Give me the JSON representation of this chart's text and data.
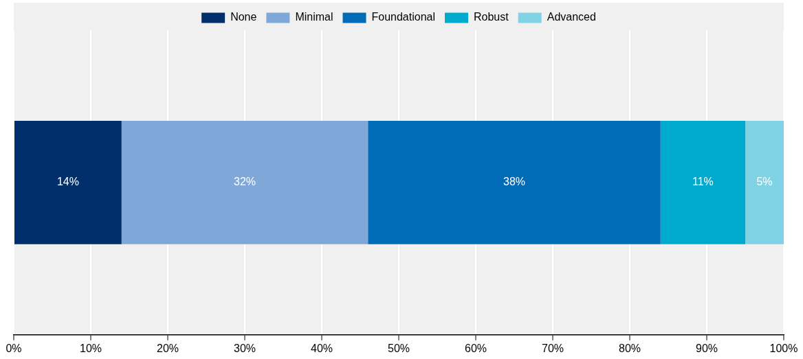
{
  "chart_data": {
    "type": "bar",
    "orientation": "horizontal",
    "stacked": true,
    "categories": [
      null
    ],
    "series": [
      {
        "name": "None",
        "color": "#002f6c",
        "values": [
          14
        ],
        "value_labels": [
          "14%"
        ]
      },
      {
        "name": "Minimal",
        "color": "#7fa8d9",
        "values": [
          32
        ],
        "value_labels": [
          "32%"
        ]
      },
      {
        "name": "Foundational",
        "color": "#006bb6",
        "values": [
          38
        ],
        "value_labels": [
          "38%"
        ]
      },
      {
        "name": "Robust",
        "color": "#00aacc",
        "values": [
          11
        ],
        "value_labels": [
          "11%"
        ]
      },
      {
        "name": "Advanced",
        "color": "#7fd3e4",
        "values": [
          5
        ],
        "value_labels": [
          "5%"
        ]
      }
    ],
    "xlim": [
      0,
      100
    ],
    "xticks": [
      {
        "value": 0,
        "label": "0%"
      },
      {
        "value": 10,
        "label": "10%"
      },
      {
        "value": 20,
        "label": "20%"
      },
      {
        "value": 30,
        "label": "30%"
      },
      {
        "value": 40,
        "label": "40%"
      },
      {
        "value": 50,
        "label": "50%"
      },
      {
        "value": 60,
        "label": "60%"
      },
      {
        "value": 70,
        "label": "70%"
      },
      {
        "value": 80,
        "label": "80%"
      },
      {
        "value": 90,
        "label": "90%"
      },
      {
        "value": 100,
        "label": "100%"
      }
    ],
    "grid": "x",
    "legend": "top"
  }
}
